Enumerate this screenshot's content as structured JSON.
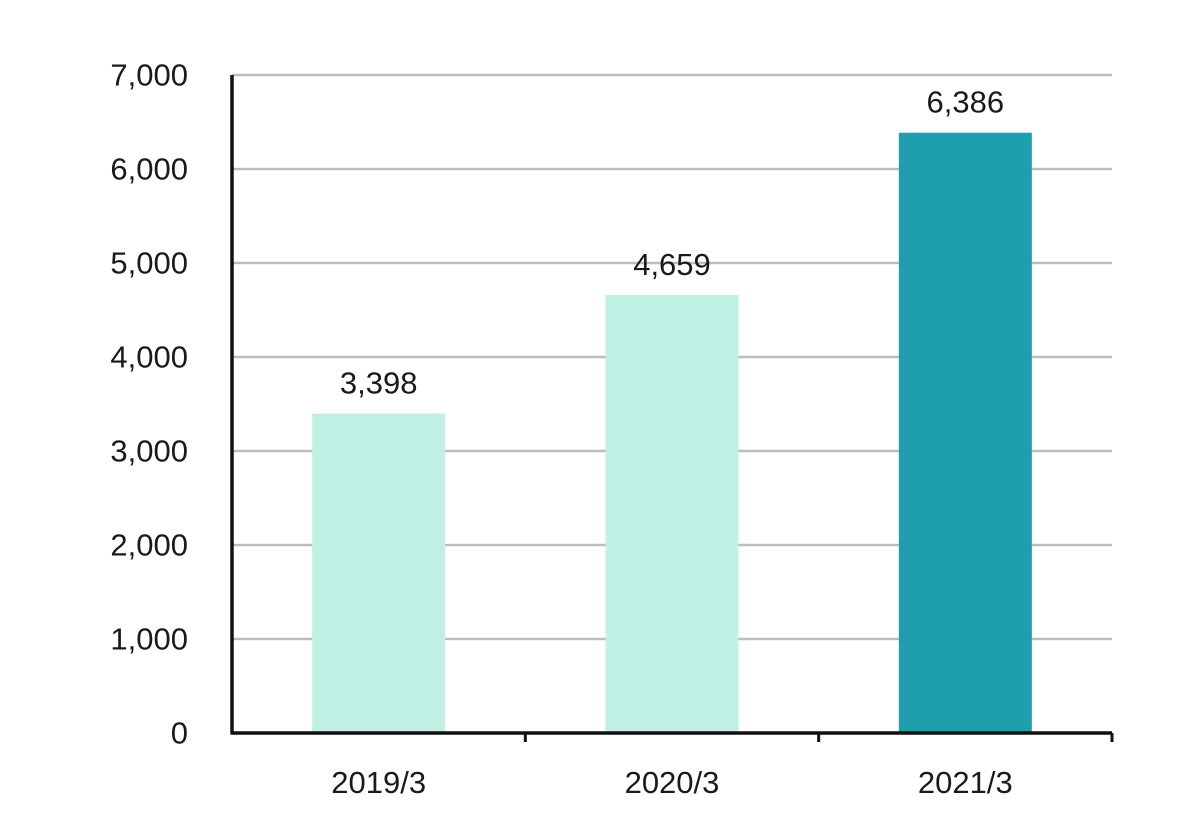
{
  "chart_data": {
    "type": "bar",
    "categories": [
      "2019/3",
      "2020/3",
      "2021/3"
    ],
    "values": [
      3398,
      4659,
      6386
    ],
    "data_labels": [
      "3,398",
      "4,659",
      "6,386"
    ],
    "title": "",
    "xlabel": "",
    "ylabel": "",
    "ylim": [
      0,
      7000
    ],
    "yticks": [
      0,
      1000,
      2000,
      3000,
      4000,
      5000,
      6000,
      7000
    ],
    "ytick_labels": [
      "0",
      "1,000",
      "2,000",
      "3,000",
      "4,000",
      "5,000",
      "6,000",
      "7,000"
    ],
    "grid": true,
    "legend": "none",
    "bar_colors": [
      "#c0f0e4",
      "#c0f0e4",
      "#1f9eae"
    ]
  }
}
